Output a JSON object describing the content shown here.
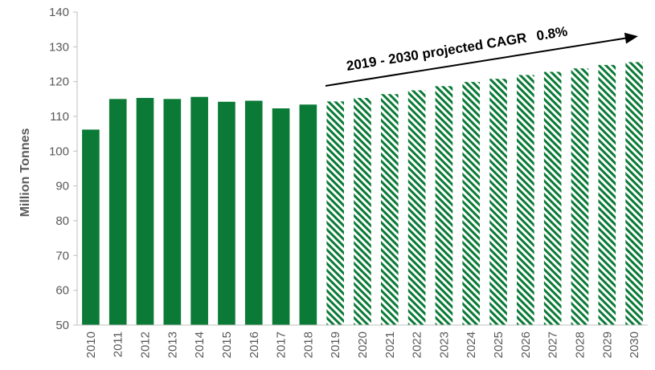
{
  "chart_data": {
    "type": "bar",
    "title": "",
    "xlabel": "",
    "ylabel": "Million Tonnes",
    "ylim": [
      50,
      140
    ],
    "yticks": [
      50,
      60,
      70,
      80,
      90,
      100,
      110,
      120,
      130,
      140
    ],
    "categories": [
      "2010",
      "2011",
      "2012",
      "2013",
      "2014",
      "2015",
      "2016",
      "2017",
      "2018",
      "2019",
      "2020",
      "2021",
      "2022",
      "2023",
      "2024",
      "2025",
      "2026",
      "2027",
      "2028",
      "2029",
      "2030"
    ],
    "values": [
      106.2,
      115.0,
      115.3,
      115.0,
      115.6,
      114.2,
      114.5,
      112.3,
      113.4,
      114.3,
      115.3,
      116.4,
      117.5,
      118.7,
      119.9,
      120.8,
      121.9,
      122.8,
      123.8,
      124.8,
      125.6
    ],
    "series": [
      {
        "values": [
          106.2,
          115.0,
          115.3,
          115.0,
          115.6,
          114.2,
          114.5,
          112.3,
          113.4,
          null,
          null,
          null,
          null,
          null,
          null,
          null,
          null,
          null,
          null,
          null,
          null
        ],
        "style": "solid",
        "color": "#0a7a36"
      },
      {
        "values": [
          null,
          null,
          null,
          null,
          null,
          null,
          null,
          null,
          null,
          114.3,
          115.3,
          116.4,
          117.5,
          118.7,
          119.9,
          120.8,
          121.9,
          122.8,
          123.8,
          124.8,
          125.6
        ],
        "style": "hatched",
        "color": "#0a7a36"
      }
    ],
    "grid": false,
    "annotation": {
      "text": "2019 - 2030 projected CAGR",
      "value": "0.8%",
      "arrow": true
    }
  }
}
